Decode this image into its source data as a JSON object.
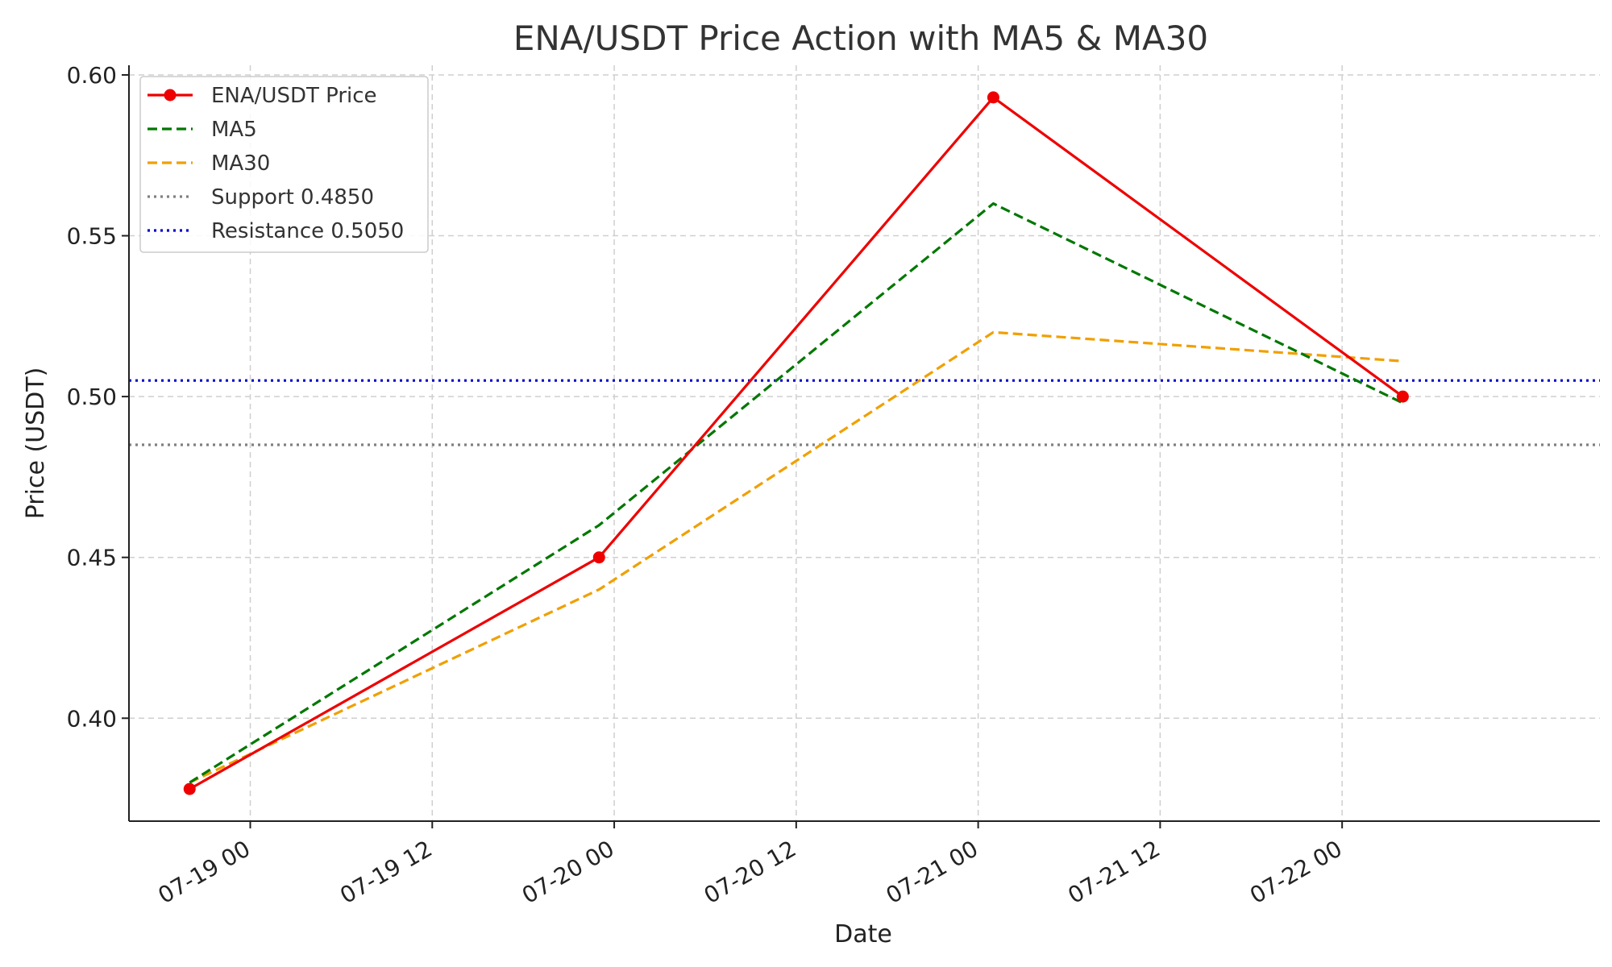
{
  "chart_data": {
    "type": "line",
    "title": "ENA/USDT Price Action with MA5 & MA30",
    "xlabel": "Date",
    "ylabel": "Price (USDT)",
    "x_type": "datetime",
    "xlim": [
      "2024-07-18 16:00",
      "2024-07-22 17:00"
    ],
    "ylim": [
      0.368,
      0.603
    ],
    "x_ticks": [
      "2024-07-19 00:00",
      "2024-07-19 12:00",
      "2024-07-20 00:00",
      "2024-07-20 12:00",
      "2024-07-21 00:00",
      "2024-07-21 12:00",
      "2024-07-22 00:00"
    ],
    "x_tick_labels": [
      "07-19 00",
      "07-19 12",
      "07-20 00",
      "07-20 12",
      "07-21 00",
      "07-21 12",
      "07-22 00"
    ],
    "y_ticks": [
      0.4,
      0.45,
      0.5,
      0.55,
      0.6
    ],
    "y_tick_labels": [
      "0.40",
      "0.45",
      "0.50",
      "0.55",
      "0.60"
    ],
    "grid": true,
    "legend_position": "top-left",
    "x": [
      "2024-07-18 20:00",
      "2024-07-19 23:00",
      "2024-07-21 01:00",
      "2024-07-22 04:00"
    ],
    "series": [
      {
        "name": "ENA/USDT Price",
        "values": [
          0.378,
          0.45,
          0.593,
          0.5
        ],
        "color": "#ee0000",
        "style": "solid",
        "markers": true
      },
      {
        "name": "MA5",
        "values": [
          0.38,
          0.46,
          0.56,
          0.498
        ],
        "color": "#007700",
        "style": "dashed",
        "markers": false
      },
      {
        "name": "MA30",
        "values": [
          0.38,
          0.44,
          0.52,
          0.511
        ],
        "color": "#f0a000",
        "style": "dashed",
        "markers": false
      }
    ],
    "hlines": [
      {
        "name": "Support 0.4850",
        "value": 0.485,
        "color": "#808080",
        "style": "dotted"
      },
      {
        "name": "Resistance 0.5050",
        "value": 0.505,
        "color": "#0000cc",
        "style": "dotted"
      }
    ]
  }
}
